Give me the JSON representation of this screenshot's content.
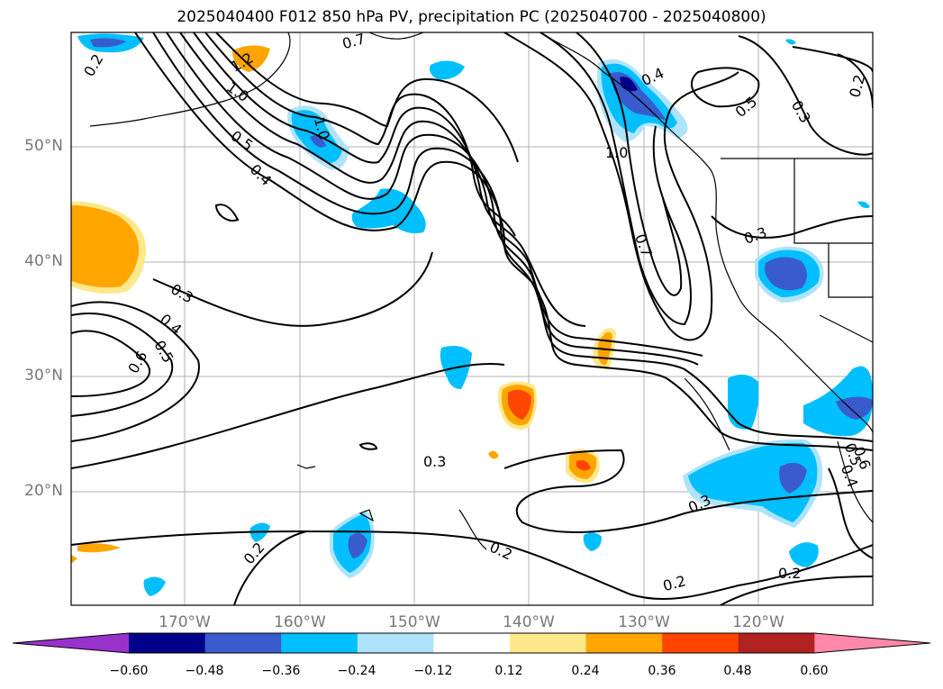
{
  "title": "2025040400 F012 850 hPa PV, precipitation PC (2025040700 - 2025040800)",
  "lat_labels": [
    "50°N",
    "40°N",
    "30°N",
    "20°N"
  ],
  "lon_labels": [
    "170°W",
    "160°W",
    "150°W",
    "140°W",
    "130°W",
    "120°W"
  ],
  "contour_labels": [
    "0.2",
    "1.2",
    "1.0",
    "0.7",
    "0.5",
    "0.4",
    "1.0",
    "0.4",
    "0.5",
    "0.3",
    "0.2",
    "1.0",
    "0.7",
    "0.3",
    "0.3",
    "0.4",
    "0.5",
    "0.6",
    "0.3",
    "0.3",
    "0.5",
    "0.4",
    "0.6",
    "0.2",
    "0.2",
    "0.2",
    "0.2"
  ],
  "colorbar": {
    "colors": [
      "#9932cc",
      "#00008b",
      "#3a5bcd",
      "#00bfff",
      "#aee3fb",
      "#ffffff",
      "#ffe88a",
      "#ffa500",
      "#ff4500",
      "#b22222",
      "#ff88aa"
    ],
    "tick_labels": [
      "−0.60",
      "−0.48",
      "−0.36",
      "−0.24",
      "−0.12",
      "0.12",
      "0.24",
      "0.36",
      "0.48",
      "0.60"
    ]
  }
}
